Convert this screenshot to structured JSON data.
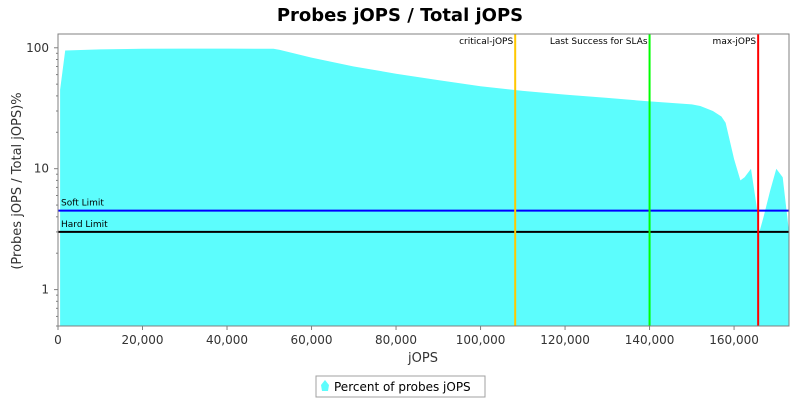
{
  "chart_data": {
    "type": "area",
    "title": "Probes jOPS / Total jOPS",
    "xlabel": "jOPS",
    "ylabel": "(Probes jOPS / Total jOPS)%",
    "y_scale": "log",
    "xlim": [
      0,
      173000
    ],
    "ylim": [
      0.5,
      130
    ],
    "x_ticks": [
      0,
      20000,
      40000,
      60000,
      80000,
      100000,
      120000,
      140000,
      160000
    ],
    "x_tick_labels": [
      "0",
      "20,000",
      "40,000",
      "60,000",
      "80,000",
      "100,000",
      "120,000",
      "140,000",
      "160,000"
    ],
    "y_ticks": [
      1,
      10,
      100
    ],
    "y_tick_labels": [
      "1",
      "10",
      "100"
    ],
    "grid": false,
    "series": [
      {
        "name": "Percent of probes jOPS",
        "color": "#5cfdfd",
        "x": [
          500,
          1700,
          10000,
          20000,
          30000,
          40000,
          51000,
          52500,
          60000,
          70000,
          80000,
          90000,
          100000,
          110000,
          120000,
          130000,
          140000,
          150000,
          152000,
          155000,
          157000,
          158000,
          160000,
          161500,
          162500,
          164000,
          165500,
          166000,
          167000,
          168500,
          170000,
          171500,
          173000
        ],
        "y": [
          45,
          95,
          97,
          98,
          98.5,
          98.5,
          98,
          96,
          83,
          70,
          61,
          54,
          48,
          44,
          41,
          38.5,
          36,
          34,
          33,
          30,
          27,
          24,
          12,
          8,
          8.5,
          10,
          4.5,
          3,
          4,
          6.5,
          10,
          8.5,
          3
        ]
      }
    ],
    "reference_lines": {
      "horizontal": [
        {
          "label": "Soft Limit",
          "y": 4.5,
          "color": "#0000ff"
        },
        {
          "label": "Hard Limit",
          "y": 3,
          "color": "#000000"
        }
      ],
      "vertical": [
        {
          "label": "critical-jOPS",
          "x": 108200,
          "color": "#ffc800"
        },
        {
          "label": "Last Success for SLAs",
          "x": 140000,
          "color": "#00ff00"
        },
        {
          "label": "max-jOPS",
          "x": 165700,
          "color": "#ff0000"
        }
      ]
    },
    "legend": {
      "position": "bottom",
      "label": "Percent of probes jOPS"
    }
  }
}
